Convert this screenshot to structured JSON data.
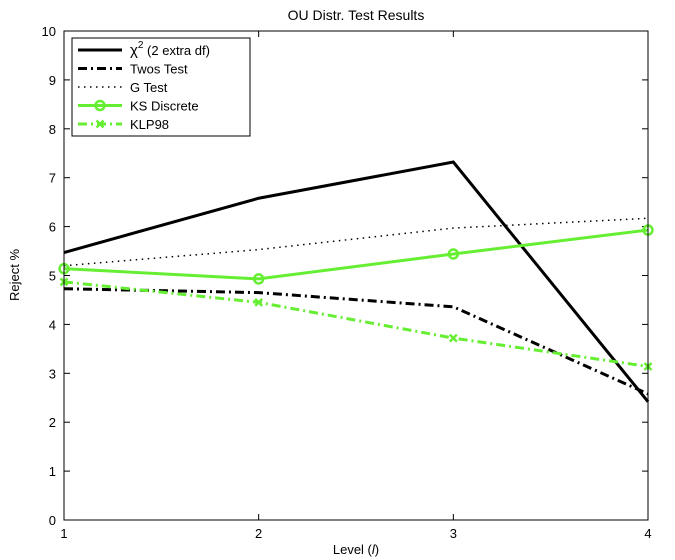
{
  "chart_data": {
    "type": "line",
    "title": "OU Distr. Test Results",
    "xlabel_prefix": "Level (",
    "xlabel_var": "l",
    "xlabel_suffix": ")",
    "ylabel": "Reject %",
    "x": [
      1,
      2,
      3,
      4
    ],
    "xticks": [
      "1",
      "2",
      "3",
      "4"
    ],
    "yticks": [
      "0",
      "1",
      "2",
      "3",
      "4",
      "5",
      "6",
      "7",
      "8",
      "9",
      "10"
    ],
    "xlim": [
      1,
      4
    ],
    "ylim": [
      0,
      10
    ],
    "grid": false,
    "legend_position": "top-left",
    "series": [
      {
        "name_main": "χ",
        "name_sup": "2",
        "name_rest": " (2 extra df)",
        "values": [
          5.47,
          6.58,
          7.32,
          2.42
        ],
        "color": "#000000",
        "dash": "solid",
        "marker": "none",
        "width": "thick"
      },
      {
        "name": "Twos Test",
        "values": [
          4.73,
          4.65,
          4.36,
          2.58
        ],
        "color": "#000000",
        "dash": "dashdot",
        "marker": "none",
        "width": "thick"
      },
      {
        "name": "G Test",
        "values": [
          5.2,
          5.53,
          5.97,
          6.17
        ],
        "color": "#000000",
        "dash": "dotted",
        "marker": "none",
        "width": "thin"
      },
      {
        "name": "KS Discrete",
        "values": [
          5.14,
          4.93,
          5.44,
          5.93
        ],
        "color": "#66ee33",
        "dash": "solid",
        "marker": "circle",
        "width": "thick"
      },
      {
        "name": "KLP98",
        "values": [
          4.87,
          4.45,
          3.72,
          3.14
        ],
        "color": "#66ee33",
        "dash": "dashdot",
        "marker": "x",
        "width": "thick"
      }
    ]
  }
}
